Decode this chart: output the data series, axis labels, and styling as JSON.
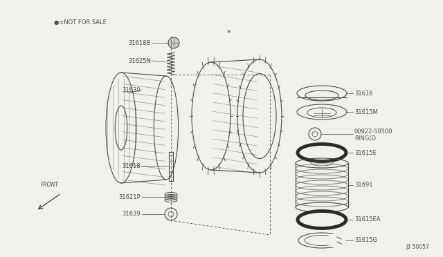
{
  "bg_color": "#f2f0ec",
  "line_color": "#4a4a4a",
  "fig_note": "J3 50057",
  "not_for_sale_label": "●=NOT FOR SALE",
  "front_label": "FRONT"
}
